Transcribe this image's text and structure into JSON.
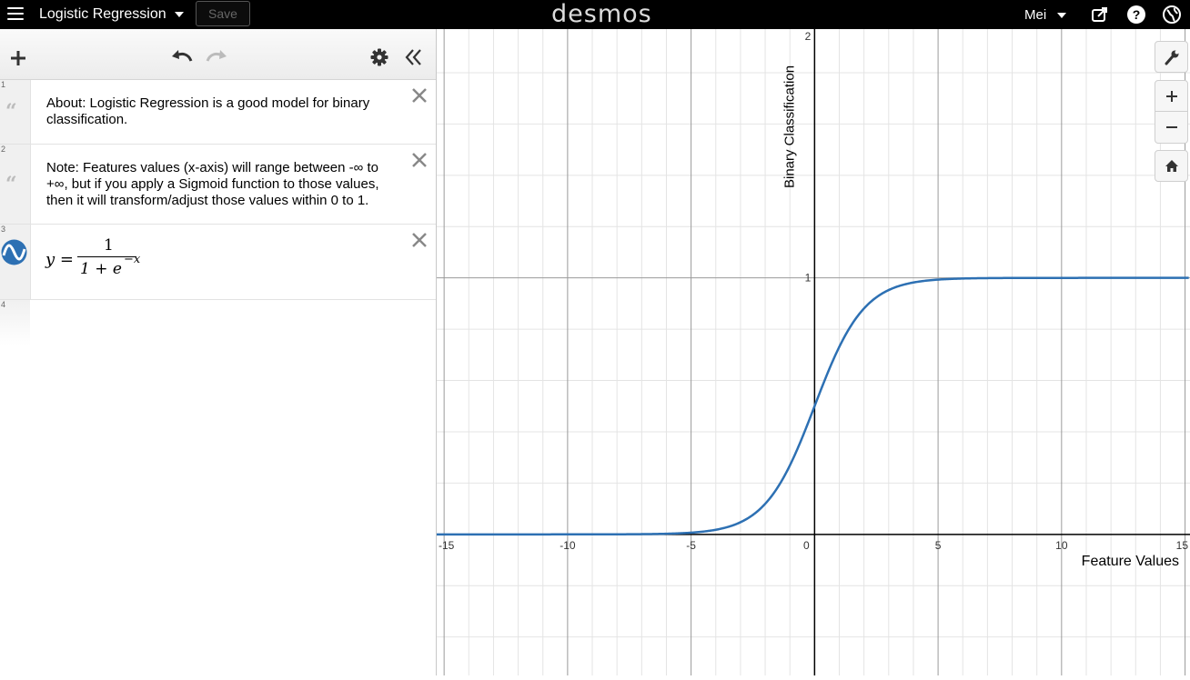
{
  "header": {
    "title": "Logistic Regression",
    "save_label": "Save",
    "brand": "desmos",
    "user": "Mei",
    "icons": [
      "menu-icon",
      "share-icon",
      "help-icon",
      "language-icon"
    ]
  },
  "toolbar": {
    "icons": [
      "add-icon",
      "undo-icon",
      "redo-icon",
      "settings-icon",
      "collapse-icon"
    ]
  },
  "expressions": [
    {
      "index": "1",
      "type": "note",
      "lines": [
        "About: Logistic Regression is a good model for binary",
        "classification."
      ]
    },
    {
      "index": "2",
      "type": "note",
      "lines": [
        "Note: Features values (x-axis) will range between -∞ to",
        "+∞, but if you apply a Sigmoid function to those values,",
        "then it will transform/adjust those values within 0 to 1."
      ]
    },
    {
      "index": "3",
      "type": "expression",
      "lhs": "y =",
      "numerator": "1",
      "denominator": "1 + e",
      "exponent": "−x",
      "color": "#2d70b3"
    },
    {
      "index": "4",
      "type": "empty"
    }
  ],
  "graph_controls": [
    "wrench-icon",
    "zoom-in-icon",
    "zoom-out-icon",
    "home-icon"
  ],
  "chart_data": {
    "type": "line",
    "xlabel": "Feature Values",
    "ylabel": "Binary Classification",
    "xlim": [
      -15.3,
      15.2
    ],
    "ylim": [
      -0.55,
      1.97
    ],
    "x_ticks": [
      "-15",
      "-10",
      "-5",
      "0",
      "5",
      "10",
      "15"
    ],
    "y_ticks": [
      "1",
      "2"
    ],
    "grid": true,
    "series": [
      {
        "expression": "y = 1/(1+e^(-x))",
        "color": "#2d70b3"
      }
    ]
  }
}
